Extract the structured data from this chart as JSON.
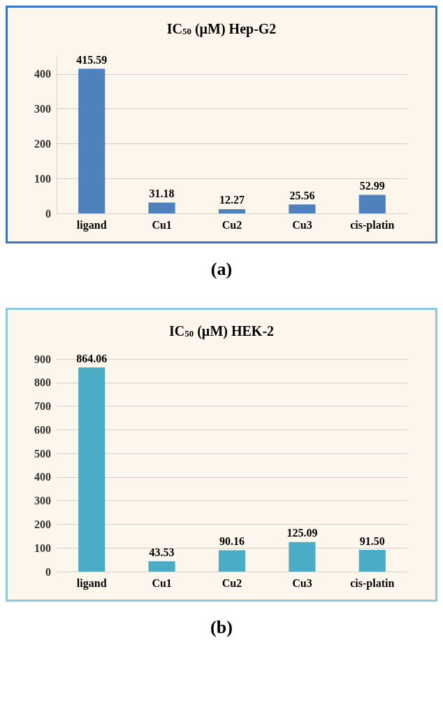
{
  "chart_data": [
    {
      "type": "bar",
      "title": "IC$_{50}$ (µM) Hep-G2",
      "categories": [
        "ligand",
        "Cu1",
        "Cu2",
        "Cu3",
        "cis-platin"
      ],
      "values": [
        415.59,
        31.18,
        12.27,
        25.56,
        52.99
      ],
      "value_labels": [
        "415.59",
        "31.18",
        "12.27",
        "25.56",
        "52.99"
      ],
      "color": "#4f81bd",
      "ylim": [
        0,
        450
      ],
      "yticks": [
        0,
        100,
        200,
        300,
        400
      ],
      "grid": "y",
      "annotations": [
        "(a)"
      ]
    },
    {
      "type": "bar",
      "title": "IC$_{50}$ (µM) HEK-2",
      "categories": [
        "ligand",
        "Cu1",
        "Cu2",
        "Cu3",
        "cis-platin"
      ],
      "values": [
        864.06,
        43.53,
        90.16,
        125.09,
        91.5
      ],
      "value_labels": [
        "864.06",
        "43.53",
        "90.16",
        "125.09",
        "91.50"
      ],
      "color": "#4bacc6",
      "ylim": [
        0,
        900
      ],
      "yticks": [
        0,
        100,
        200,
        300,
        400,
        500,
        600,
        700,
        800,
        900
      ],
      "grid": "y",
      "annotations": [
        "(b)"
      ]
    }
  ]
}
